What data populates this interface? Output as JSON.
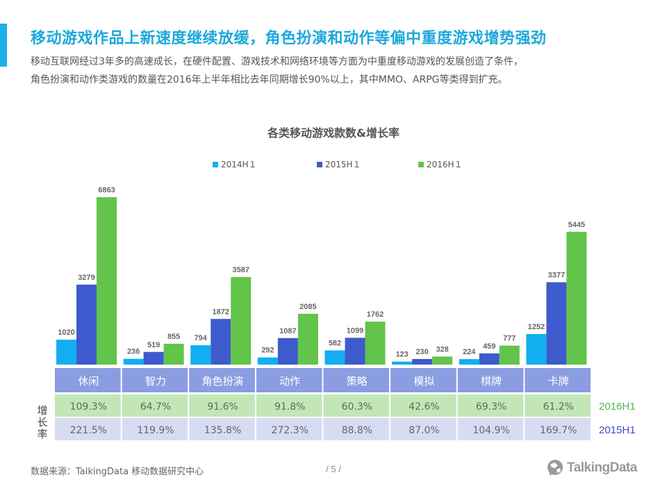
{
  "header": {
    "title": "移动游戏作品上新速度继续放缓，角色扮演和动作等偏中重度游戏增势强劲",
    "desc_line1": "移动互联网经过3年多的高速成长，在硬件配置、游戏技术和网络环境等方面为中重度移动游戏的发展创造了条件，",
    "desc_line2": "角色扮演和动作类游戏的数量在2016年上半年相比去年同期增长90%以上，其中MMO、ARPG等类得到扩充。"
  },
  "chart_data": {
    "type": "bar",
    "title": "各类移动游戏款数&增长率",
    "categories": [
      "休闲",
      "智力",
      "角色扮演",
      "动作",
      "策略",
      "模拟",
      "棋牌",
      "卡牌"
    ],
    "series": [
      {
        "name": "2014H１",
        "color": "#12aef0",
        "values": [
          1020,
          236,
          794,
          292,
          582,
          123,
          224,
          1252
        ]
      },
      {
        "name": "2015H１",
        "color": "#3d5bcc",
        "values": [
          3279,
          519,
          1872,
          1087,
          1099,
          230,
          459,
          3377
        ]
      },
      {
        "name": "2016H１",
        "color": "#62c44a",
        "values": [
          6863,
          855,
          3587,
          2085,
          1762,
          328,
          777,
          5445
        ]
      }
    ],
    "ylim": [
      0,
      6863
    ],
    "legend_position": "top",
    "grid": false,
    "growth_table": {
      "ylabel": "增长率",
      "rows": [
        {
          "label": "2016H1",
          "color": "#4fb84a",
          "bg": "#c3e6b6",
          "values": [
            "109.3%",
            "64.7%",
            "91.6%",
            "91.8%",
            "60.3%",
            "42.6%",
            "69.3%",
            "61.2%"
          ]
        },
        {
          "label": "2015H1",
          "color": "#3b50c4",
          "bg": "#d8dcf3",
          "values": [
            "221.5%",
            "119.9%",
            "135.8%",
            "272.3%",
            "88.8%",
            "87.0%",
            "104.9%",
            "169.7%"
          ]
        }
      ],
      "category_bg": "#8a9de0"
    }
  },
  "footer": {
    "source": "数据来源：TalkingData  移动数据研究中心",
    "page": "/ 5 /",
    "logo_text": "TalkingData"
  }
}
